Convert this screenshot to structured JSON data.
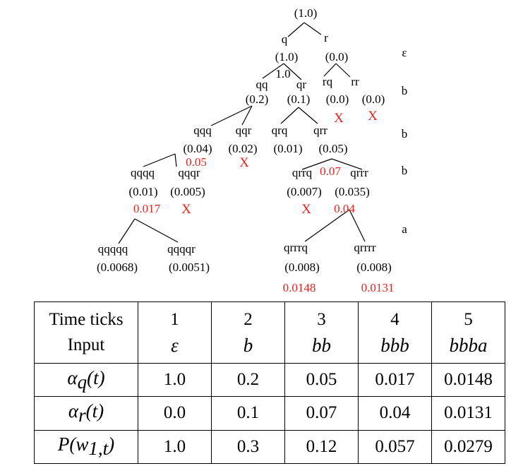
{
  "tree": {
    "nodes": [
      {
        "id": "root",
        "label": "(1.0)"
      },
      {
        "id": "q",
        "label": "q"
      },
      {
        "id": "r",
        "label": "r"
      },
      {
        "id": "q_p",
        "label": "(1.0)"
      },
      {
        "id": "r_p",
        "label": "(0.0)"
      },
      {
        "id": "qq",
        "label": "qq"
      },
      {
        "id": "qr",
        "label": "qr"
      },
      {
        "id": "rq",
        "label": "rq"
      },
      {
        "id": "rr",
        "label": "rr"
      },
      {
        "id": "qq_p",
        "label": "(0.2)"
      },
      {
        "id": "qr_p",
        "label": "(0.1)"
      },
      {
        "id": "rq_p",
        "label": "(0.0)"
      },
      {
        "id": "rr_p",
        "label": "(0.0)"
      },
      {
        "id": "qqq",
        "label": "qqq"
      },
      {
        "id": "qqr",
        "label": "qqr"
      },
      {
        "id": "qrq",
        "label": "qrq"
      },
      {
        "id": "qrr",
        "label": "qrr"
      },
      {
        "id": "qqq_p",
        "label": "(0.04)"
      },
      {
        "id": "qqr_p",
        "label": "(0.02)"
      },
      {
        "id": "qrq_p",
        "label": "(0.01)"
      },
      {
        "id": "qrr_p",
        "label": "(0.05)"
      },
      {
        "id": "qqqq",
        "label": "qqqq"
      },
      {
        "id": "qqqr",
        "label": "qqqr"
      },
      {
        "id": "qrrq",
        "label": "qrrq"
      },
      {
        "id": "qrrr",
        "label": "qrrr"
      },
      {
        "id": "qqqq_p",
        "label": "(0.01)"
      },
      {
        "id": "qqqr_p",
        "label": "(0.005)"
      },
      {
        "id": "qrrq_p",
        "label": "(0.007)"
      },
      {
        "id": "qrrr_p",
        "label": "(0.035)"
      },
      {
        "id": "qqqqq",
        "label": "qqqqq"
      },
      {
        "id": "qqqqr",
        "label": "qqqqr"
      },
      {
        "id": "qrrrq",
        "label": "qrrrq"
      },
      {
        "id": "qrrrr",
        "label": "qrrrr"
      },
      {
        "id": "qqqqq_p",
        "label": "(0.0068)"
      },
      {
        "id": "qqqqr_p",
        "label": "(0.0051)"
      },
      {
        "id": "qrrrq_p",
        "label": "(0.008)"
      },
      {
        "id": "qrrrr_p",
        "label": "(0.008)"
      }
    ],
    "overlay_value": "1.0",
    "sums": [
      {
        "id": "s_b2",
        "label": "0.05"
      },
      {
        "id": "s_b3",
        "label": "0.07"
      },
      {
        "id": "s_a1",
        "label": "0.017"
      },
      {
        "id": "s_a2",
        "label": "0.04"
      },
      {
        "id": "s_f1",
        "label": "0.0148"
      },
      {
        "id": "s_f2",
        "label": "0.0131"
      }
    ],
    "pruned_mark": "X",
    "input_symbols": [
      "ε",
      "b",
      "b",
      "b",
      "a"
    ],
    "colors": {
      "line": "#000000",
      "accent": "#e8231f"
    }
  },
  "table": {
    "header_label": "Time ticks",
    "input_label": "Input",
    "ticks": [
      "1",
      "2",
      "3",
      "4",
      "5"
    ],
    "inputs": [
      "ε",
      "b",
      "bb",
      "bbb",
      "bbba"
    ],
    "rows": [
      {
        "label": "α",
        "sub": "q",
        "arg": "(t)",
        "values": [
          "1.0",
          "0.2",
          "0.05",
          "0.017",
          "0.0148"
        ]
      },
      {
        "label": "α",
        "sub": "r",
        "arg": "(t)",
        "values": [
          "0.0",
          "0.1",
          "0.07",
          "0.04",
          "0.0131"
        ]
      },
      {
        "label": "P(w",
        "sub": "1,t",
        "arg": ")",
        "values": [
          "1.0",
          "0.3",
          "0.12",
          "0.057",
          "0.0279"
        ]
      }
    ]
  }
}
